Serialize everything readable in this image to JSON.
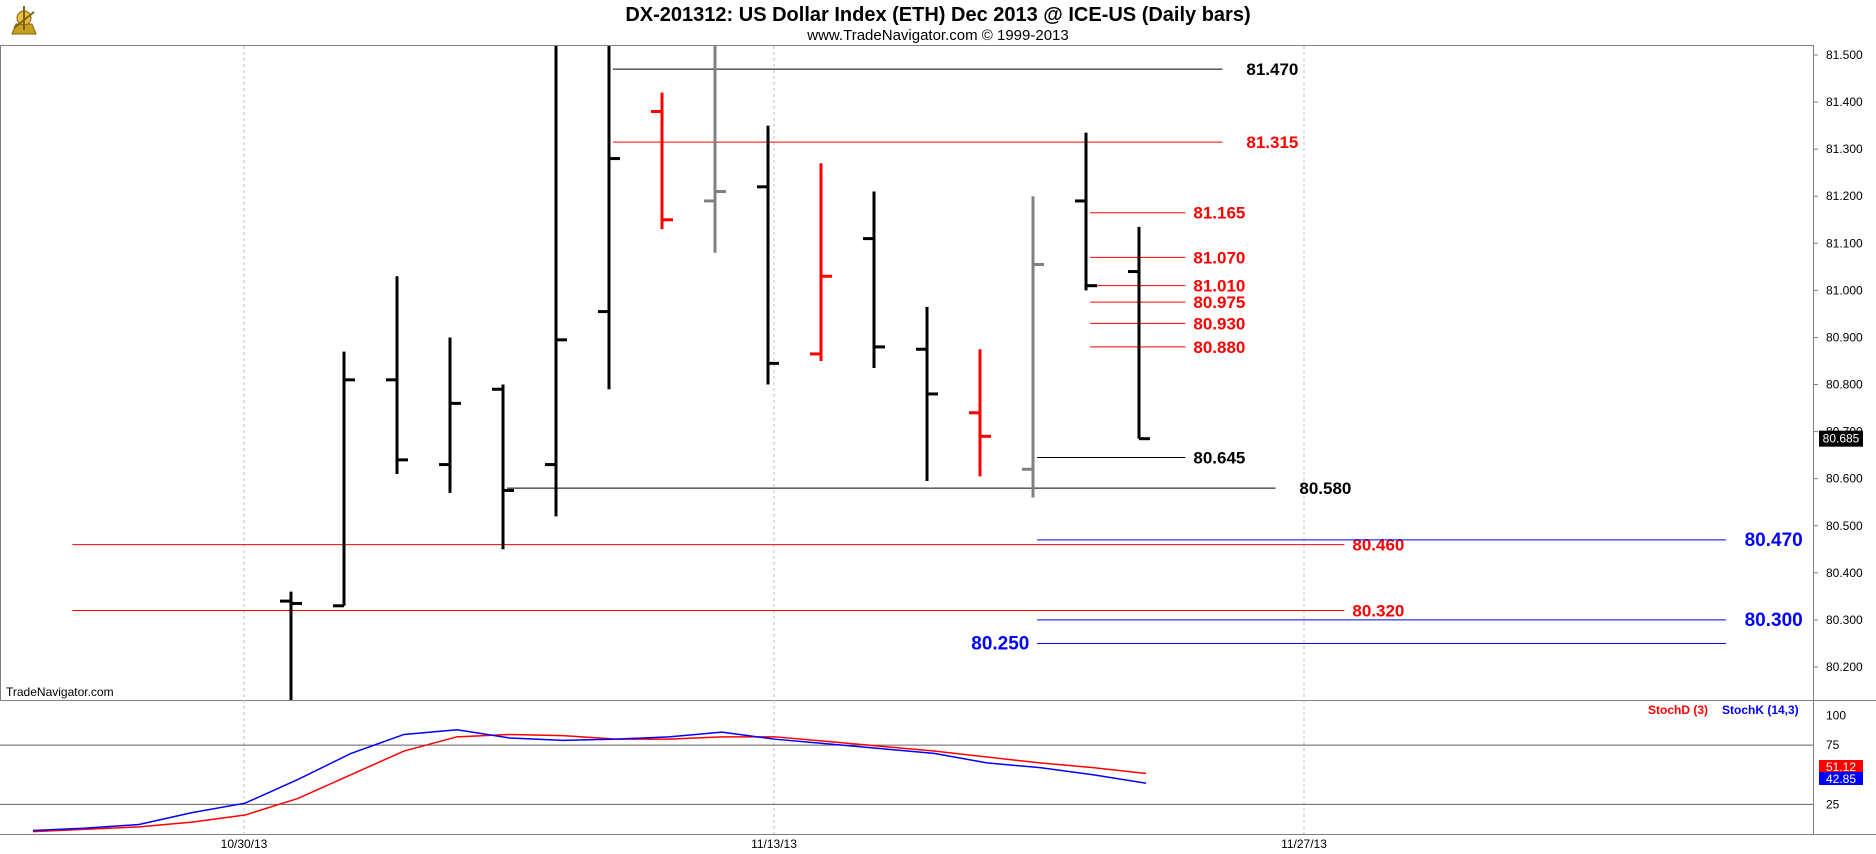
{
  "header": {
    "title": "DX-201312:  US Dollar Index (ETH) Dec 2013 @ ICE-US  (Daily bars)",
    "subtitle": "www.TradeNavigator.com © 1999-2013",
    "watermark": "TradeNavigator.com",
    "logo_icon": "compass-logo-icon"
  },
  "chart_data": [
    {
      "type": "ohlc",
      "ylim": [
        80.12,
        81.52
      ],
      "y_ticks": [
        "81.500",
        "81.400",
        "81.300",
        "81.200",
        "81.100",
        "81.000",
        "80.900",
        "80.800",
        "80.700",
        "80.600",
        "80.500",
        "80.400",
        "80.300",
        "80.200"
      ],
      "x_ticks": [
        "10/30/13",
        "11/13/13",
        "11/27/13"
      ],
      "x_tick_positions": [
        4,
        14,
        24
      ],
      "last_price_tag": "80.685",
      "colors": {
        "up": "#000000",
        "down": "#ff0000",
        "neutral": "#808080",
        "support": "#0000ff"
      },
      "bars": [
        {
          "x": 5,
          "open": 80.34,
          "high": 80.36,
          "low": 80.12,
          "close": 80.335,
          "color": "#000000"
        },
        {
          "x": 6,
          "open": 80.33,
          "high": 80.87,
          "low": 80.33,
          "close": 80.81,
          "color": "#000000"
        },
        {
          "x": 7,
          "open": 80.81,
          "high": 81.03,
          "low": 80.61,
          "close": 80.64,
          "color": "#000000"
        },
        {
          "x": 8,
          "open": 80.63,
          "high": 80.9,
          "low": 80.57,
          "close": 80.76,
          "color": "#000000"
        },
        {
          "x": 9,
          "open": 80.79,
          "high": 80.8,
          "low": 80.45,
          "close": 80.575,
          "color": "#000000"
        },
        {
          "x": 10,
          "open": 80.63,
          "high": 81.52,
          "low": 80.52,
          "close": 80.895,
          "color": "#000000"
        },
        {
          "x": 11,
          "open": 80.955,
          "high": 81.52,
          "low": 80.79,
          "close": 81.28,
          "color": "#000000"
        },
        {
          "x": 12,
          "open": 81.38,
          "high": 81.42,
          "low": 81.13,
          "close": 81.15,
          "color": "#ff0000"
        },
        {
          "x": 13,
          "open": 81.19,
          "high": 81.52,
          "low": 81.08,
          "close": 81.21,
          "color": "#808080"
        },
        {
          "x": 14,
          "open": 81.22,
          "high": 81.35,
          "low": 80.8,
          "close": 80.845,
          "color": "#000000"
        },
        {
          "x": 15,
          "open": 80.865,
          "high": 81.27,
          "low": 80.85,
          "close": 81.03,
          "color": "#ff0000"
        },
        {
          "x": 16,
          "open": 81.11,
          "high": 81.21,
          "low": 80.835,
          "close": 80.88,
          "color": "#000000"
        },
        {
          "x": 17,
          "open": 80.875,
          "high": 80.965,
          "low": 80.595,
          "close": 80.78,
          "color": "#000000"
        },
        {
          "x": 18,
          "open": 80.74,
          "high": 80.875,
          "low": 80.605,
          "close": 80.69,
          "color": "#ff0000"
        },
        {
          "x": 19,
          "open": 80.62,
          "high": 81.2,
          "low": 80.56,
          "close": 81.055,
          "color": "#808080"
        },
        {
          "x": 20,
          "open": 81.19,
          "high": 81.335,
          "low": 81.0,
          "close": 81.01,
          "color": "#000000"
        },
        {
          "x": 21,
          "open": 81.04,
          "high": 81.135,
          "low": 80.685,
          "close": 80.685,
          "color": "#000000"
        }
      ],
      "levels": [
        {
          "value": 81.47,
          "label": "81.470",
          "from_x": 11,
          "to_x": 22.5,
          "color": "#000000",
          "label_x": 22.8,
          "big": false
        },
        {
          "value": 81.315,
          "label": "81.315",
          "from_x": 11,
          "to_x": 22.5,
          "color": "#ff0000",
          "label_x": 22.8,
          "big": false
        },
        {
          "value": 81.165,
          "label": "81.165",
          "from_x": 20,
          "to_x": 21.8,
          "color": "#ff0000",
          "label_x": 21.8,
          "big": false
        },
        {
          "value": 81.07,
          "label": "81.070",
          "from_x": 20,
          "to_x": 21.8,
          "color": "#ff0000",
          "label_x": 21.8,
          "big": false
        },
        {
          "value": 81.01,
          "label": "81.010",
          "from_x": 20,
          "to_x": 21.8,
          "color": "#ff0000",
          "label_x": 21.8,
          "big": false
        },
        {
          "value": 80.975,
          "label": "80.975",
          "from_x": 20,
          "to_x": 21.8,
          "color": "#ff0000",
          "label_x": 21.8,
          "big": false
        },
        {
          "value": 80.93,
          "label": "80.930",
          "from_x": 20,
          "to_x": 21.8,
          "color": "#ff0000",
          "label_x": 21.8,
          "big": false
        },
        {
          "value": 80.88,
          "label": "80.880",
          "from_x": 20,
          "to_x": 21.8,
          "color": "#ff0000",
          "label_x": 21.8,
          "big": false
        },
        {
          "value": 80.645,
          "label": "80.645",
          "from_x": 19,
          "to_x": 21.8,
          "color": "#000000",
          "label_x": 21.8,
          "big": false
        },
        {
          "value": 80.58,
          "label": "80.580",
          "from_x": 9,
          "to_x": 23.5,
          "color": "#000000",
          "label_x": 23.8,
          "big": false
        },
        {
          "value": 80.46,
          "label": "80.460",
          "from_x": 0.8,
          "to_x": 24.8,
          "color": "#ff0000",
          "label_x": 24.8,
          "big": false
        },
        {
          "value": 80.32,
          "label": "80.320",
          "from_x": 0.8,
          "to_x": 24.8,
          "color": "#ff0000",
          "label_x": 24.8,
          "big": false
        },
        {
          "value": 80.47,
          "label": "80.470",
          "from_x": 19,
          "to_x": 32,
          "color": "#0000ff",
          "label_x": 32.2,
          "big": true
        },
        {
          "value": 80.3,
          "label": "80.300",
          "from_x": 19,
          "to_x": 32,
          "color": "#0000ff",
          "label_x": 32.2,
          "big": true
        },
        {
          "value": 80.25,
          "label": "80.250",
          "from_x": 19,
          "to_x": 32,
          "color": "#0000ff",
          "label_x": 18.8,
          "big": true,
          "label_left": true
        }
      ]
    },
    {
      "type": "line",
      "ylim": [
        0,
        108
      ],
      "y_ticks": [
        "100",
        "75",
        "25"
      ],
      "legend": [
        {
          "name": "StochD (3)",
          "color": "#ff0000"
        },
        {
          "name": "StochK (14,3)",
          "color": "#0000ff"
        }
      ],
      "series": [
        {
          "name": "StochD (3)",
          "color": "#ff0000",
          "last_tag": "51.12",
          "x": [
            0,
            1,
            2,
            3,
            4,
            5,
            6,
            7,
            8,
            9,
            10,
            11,
            12,
            13,
            14,
            15,
            16,
            17,
            18,
            19,
            20,
            21
          ],
          "values": [
            2,
            4,
            6,
            10,
            16,
            30,
            50,
            70,
            82,
            84,
            83,
            80,
            80,
            82,
            82,
            78,
            74,
            70,
            65,
            60,
            56,
            51.12
          ]
        },
        {
          "name": "StochK (14,3)",
          "color": "#0000ff",
          "last_tag": "42.85",
          "x": [
            0,
            1,
            2,
            3,
            4,
            5,
            6,
            7,
            8,
            9,
            10,
            11,
            12,
            13,
            14,
            15,
            16,
            17,
            18,
            19,
            20,
            21
          ],
          "values": [
            3,
            5,
            8,
            18,
            26,
            46,
            68,
            84,
            88,
            81,
            79,
            80,
            82,
            86,
            80,
            76,
            72,
            68,
            60,
            56,
            50,
            42.85
          ]
        }
      ],
      "ref_lines": [
        75,
        25
      ]
    }
  ]
}
